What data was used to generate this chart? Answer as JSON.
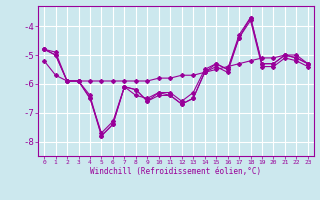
{
  "xlabel": "Windchill (Refroidissement éolien,°C)",
  "background_color": "#cce8ee",
  "grid_color": "#ffffff",
  "line_color": "#990099",
  "xlim": [
    -0.5,
    23.5
  ],
  "ylim": [
    -8.5,
    -3.3
  ],
  "yticks": [
    -8,
    -7,
    -6,
    -5,
    -4
  ],
  "xticks": [
    0,
    1,
    2,
    3,
    4,
    5,
    6,
    7,
    8,
    9,
    10,
    11,
    12,
    13,
    14,
    15,
    16,
    17,
    18,
    19,
    20,
    21,
    22,
    23
  ],
  "series": [
    [
      -4.8,
      -4.9,
      -5.9,
      -5.9,
      -6.5,
      -7.7,
      -7.3,
      -6.1,
      -6.4,
      -6.5,
      -6.3,
      -6.3,
      -6.6,
      -6.3,
      -5.5,
      -5.3,
      -5.5,
      -4.3,
      -3.7,
      -5.3,
      -5.3,
      -5.0,
      -5.1,
      -5.3
    ],
    [
      -4.8,
      -5.0,
      -5.9,
      -5.9,
      -6.4,
      -7.8,
      -7.4,
      -6.1,
      -6.2,
      -6.6,
      -6.4,
      -6.4,
      -6.7,
      -6.5,
      -5.6,
      -5.4,
      -5.6,
      -4.4,
      -3.8,
      -5.4,
      -5.4,
      -5.1,
      -5.2,
      -5.4
    ],
    [
      -5.2,
      -5.7,
      -5.9,
      -5.9,
      -5.9,
      -5.9,
      -5.9,
      -5.9,
      -5.9,
      -5.9,
      -5.8,
      -5.8,
      -5.7,
      -5.7,
      -5.6,
      -5.5,
      -5.4,
      -5.3,
      -5.2,
      -5.1,
      -5.1,
      -5.0,
      -5.0,
      -5.3
    ],
    [
      -4.8,
      -5.0,
      -5.9,
      -5.9,
      -6.5,
      -7.8,
      -7.4,
      -6.1,
      -6.2,
      -6.6,
      -6.3,
      -6.4,
      -6.7,
      -6.5,
      -5.6,
      -5.3,
      -5.5,
      -4.4,
      -3.7,
      -5.3,
      -5.3,
      -5.0,
      -5.1,
      -5.3
    ]
  ]
}
